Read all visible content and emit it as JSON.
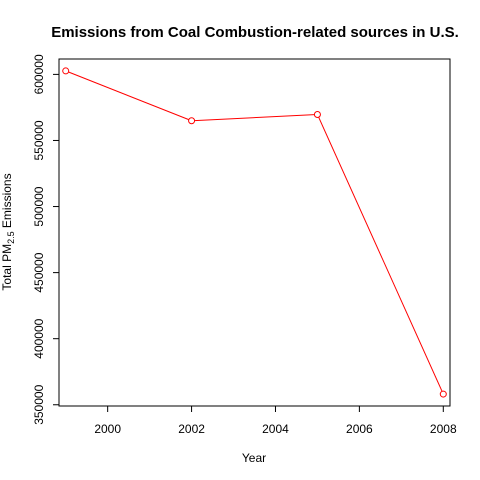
{
  "chart_data": {
    "type": "line",
    "title": "Emissions from Coal Combustion-related sources in U.S.",
    "xlabel": "Year",
    "ylabel": {
      "prefix": "Total PM",
      "subscript": "2.5",
      "suffix": " Emissions"
    },
    "x": [
      1999,
      2002,
      2005,
      2008
    ],
    "series": [
      {
        "values": [
          602624,
          564940,
          569654,
          358084
        ],
        "color": "#ff0000"
      }
    ],
    "xticks": [
      "2000",
      "2002",
      "2004",
      "2006",
      "2008"
    ],
    "yticks": [
      "350000",
      "400000",
      "450000",
      "500000",
      "550000",
      "600000"
    ],
    "xlim": [
      1998.84,
      2008.16
    ],
    "ylim": [
      349063,
      611645
    ],
    "grid": false,
    "legend": "none"
  }
}
